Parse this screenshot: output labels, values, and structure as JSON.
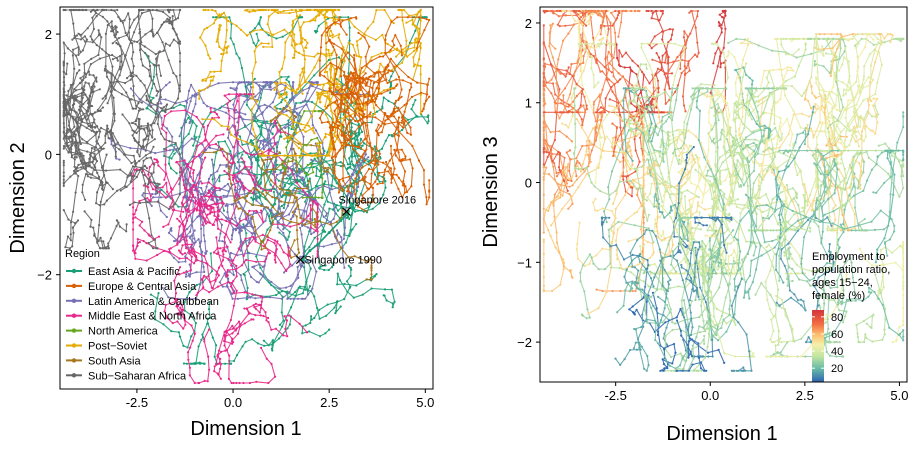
{
  "chart_data": [
    {
      "type": "line",
      "panel": "left",
      "xlabel": "Dimension 1",
      "ylabel": "Dimension 2",
      "xlim": [
        -4.5,
        5.2
      ],
      "ylim": [
        -3.9,
        2.45
      ],
      "x_ticks": [
        -2.5,
        0.0,
        2.5,
        5.0
      ],
      "x_tick_labels": [
        "-2.5",
        "0.0",
        "2.5",
        "5.0"
      ],
      "y_ticks": [
        -2,
        0,
        2
      ],
      "y_tick_labels": [
        "−2",
        "0",
        "2"
      ],
      "grid": false,
      "legend": {
        "title": "Region",
        "placement": "bottom-left",
        "entries": [
          {
            "name": "East Asia & Pacific",
            "color": "#1b9e77"
          },
          {
            "name": "Europe & Central Asia",
            "color": "#d95f02"
          },
          {
            "name": "Latin America & Caribbean",
            "color": "#7570b3"
          },
          {
            "name": "Middle East & North Africa",
            "color": "#e7298a"
          },
          {
            "name": "North America",
            "color": "#66a61e"
          },
          {
            "name": "Post−Soviet",
            "color": "#e6ab02"
          },
          {
            "name": "South Asia",
            "color": "#a6761d"
          },
          {
            "name": "Sub−Saharan Africa",
            "color": "#666666"
          }
        ]
      },
      "series": [
        {
          "name": "East Asia & Pacific",
          "clusters": [
            {
              "cx": 1.5,
              "cy": -0.6,
              "sx": 1.7,
              "sy": 1.2,
              "n": 900
            }
          ]
        },
        {
          "name": "Europe & Central Asia",
          "clusters": [
            {
              "cx": 3.7,
              "cy": 0.6,
              "sx": 0.6,
              "sy": 0.7,
              "n": 520
            }
          ]
        },
        {
          "name": "Latin America & Caribbean",
          "clusters": [
            {
              "cx": 0.2,
              "cy": -0.6,
              "sx": 1.4,
              "sy": 0.75,
              "n": 760
            }
          ]
        },
        {
          "name": "Middle East & North Africa",
          "clusters": [
            {
              "cx": -0.2,
              "cy": -1.4,
              "sx": 1.0,
              "sy": 1.0,
              "n": 620
            }
          ]
        },
        {
          "name": "North America",
          "clusters": [
            {
              "cx": 1.6,
              "cy": 0.0,
              "sx": 0.3,
              "sy": 0.3,
              "n": 40
            }
          ]
        },
        {
          "name": "Post−Soviet",
          "clusters": [
            {
              "cx": 2.0,
              "cy": 1.3,
              "sx": 1.2,
              "sy": 0.55,
              "n": 560
            }
          ]
        },
        {
          "name": "South Asia",
          "clusters": [
            {
              "cx": 1.2,
              "cy": -0.4,
              "sx": 1.0,
              "sy": 0.7,
              "n": 150
            }
          ]
        },
        {
          "name": "Sub−Saharan Africa",
          "clusters": [
            {
              "cx": -3.3,
              "cy": 0.6,
              "sx": 0.8,
              "sy": 0.9,
              "n": 880
            }
          ]
        }
      ],
      "highlight": {
        "color": "#1b9e77",
        "x": [
          1.8,
          2.0,
          2.2,
          2.5,
          2.8,
          2.95,
          3.0
        ],
        "y": [
          -1.75,
          -1.6,
          -1.5,
          -1.3,
          -1.1,
          -1.0,
          -0.95
        ]
      },
      "annotations": [
        {
          "text": "Singapore 2016",
          "x": 2.95,
          "y": -0.95
        },
        {
          "text": "Singapore 1990",
          "x": 1.75,
          "y": -1.75
        }
      ]
    },
    {
      "type": "line",
      "panel": "right",
      "xlabel": "Dimension 1",
      "ylabel": "Dimension 3",
      "xlim": [
        -4.5,
        5.2
      ],
      "ylim": [
        -2.5,
        2.2
      ],
      "x_ticks": [
        -2.5,
        0.0,
        2.5,
        5.0
      ],
      "x_tick_labels": [
        "-2.5",
        "0.0",
        "2.5",
        "5.0"
      ],
      "y_ticks": [
        -2,
        -1,
        0,
        1,
        2
      ],
      "y_tick_labels": [
        "−2",
        "−1",
        "0",
        "1",
        "2"
      ],
      "grid": false,
      "colorbar": {
        "title": [
          "Employment to",
          "population ratio,",
          "ages 15−24,",
          "female (%)"
        ],
        "ticks": [
          20,
          40,
          60,
          80
        ],
        "tick_labels": [
          "20",
          "40",
          "60",
          "80"
        ],
        "range": [
          5,
          88
        ],
        "placement": "bottom-right"
      },
      "clusters": [
        {
          "cx": -3.2,
          "cy": 0.8,
          "sx": 0.6,
          "sy": 0.9,
          "value": 65,
          "n": 650
        },
        {
          "cx": -2.0,
          "cy": 1.6,
          "sx": 1.0,
          "sy": 0.3,
          "value": 75,
          "n": 300
        },
        {
          "cx": -0.6,
          "cy": 0.3,
          "sx": 1.3,
          "sy": 0.6,
          "value": 40,
          "n": 700
        },
        {
          "cx": 2.2,
          "cy": 0.6,
          "sx": 1.3,
          "sy": 0.5,
          "value": 38,
          "n": 650
        },
        {
          "cx": 4.0,
          "cy": 0.9,
          "sx": 0.5,
          "sy": 0.4,
          "value": 48,
          "n": 250
        },
        {
          "cx": 0.0,
          "cy": -0.5,
          "sx": 1.5,
          "sy": 0.7,
          "value": 30,
          "n": 900
        },
        {
          "cx": -0.7,
          "cy": -1.4,
          "sx": 0.9,
          "sy": 0.4,
          "value": 15,
          "n": 350
        },
        {
          "cx": 3.0,
          "cy": -0.8,
          "sx": 1.1,
          "sy": 0.5,
          "value": 30,
          "n": 450
        }
      ]
    }
  ]
}
